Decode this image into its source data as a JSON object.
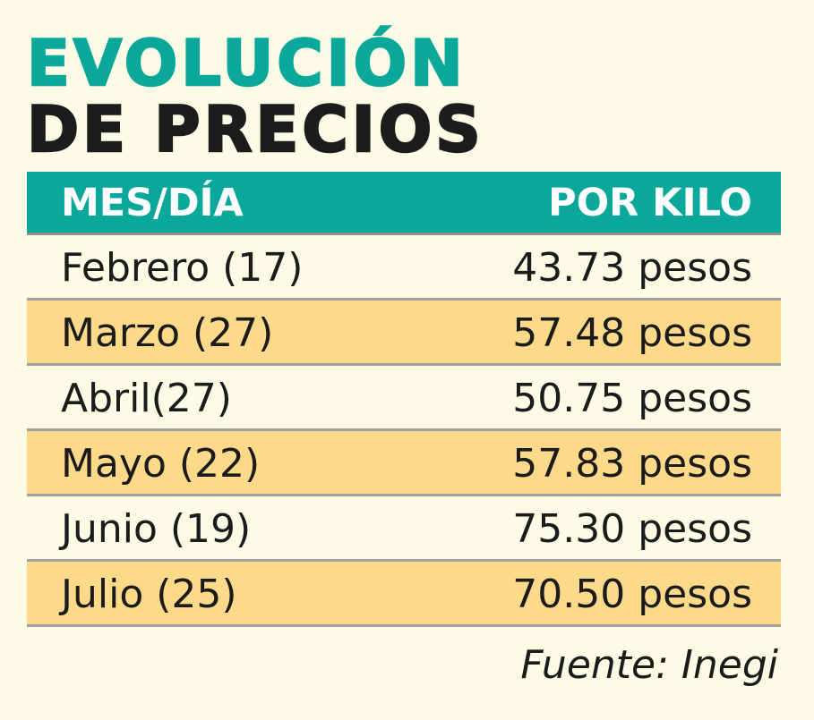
{
  "title": {
    "line1": "EVOLUCIÓN",
    "line2": "DE PRECIOS"
  },
  "colors": {
    "accent": "#0aa89a",
    "row_highlight": "#fdd98a",
    "background": "#fbfbe6"
  },
  "chart_data": {
    "type": "table",
    "title": "EVOLUCIÓN DE PRECIOS",
    "columns": [
      "MES/DÍA",
      "POR KILO"
    ],
    "rows": [
      {
        "label": "Febrero (17)",
        "value": "43.73 pesos",
        "price": 43.73
      },
      {
        "label": "Marzo (27)",
        "value": "57.48 pesos",
        "price": 57.48
      },
      {
        "label": "Abril(27)",
        "value": "50.75 pesos",
        "price": 50.75
      },
      {
        "label": "Mayo (22)",
        "value": "57.83 pesos",
        "price": 57.83
      },
      {
        "label": "Junio (19)",
        "value": "75.30 pesos",
        "price": 75.3
      },
      {
        "label": "Julio (25)",
        "value": "70.50 pesos",
        "price": 70.5
      }
    ],
    "source": "Fuente: Inegi"
  }
}
